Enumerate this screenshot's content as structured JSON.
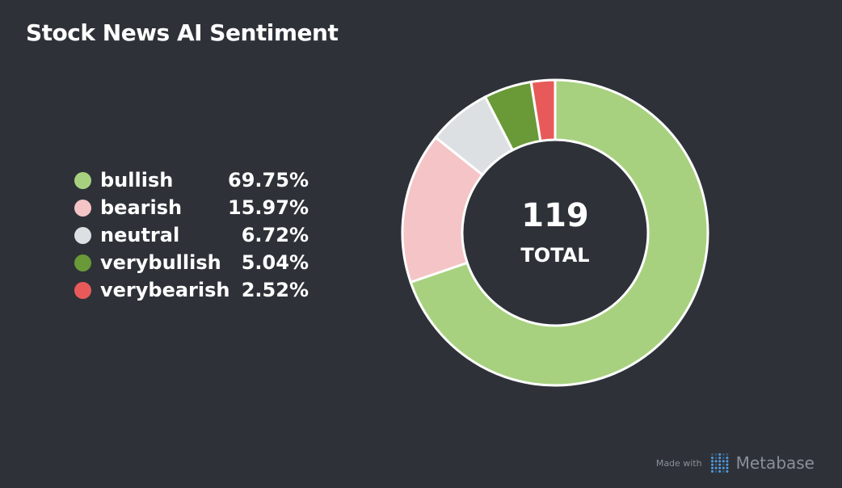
{
  "title": "Stock News AI Sentiment",
  "chart_data": {
    "type": "pie",
    "donut": true,
    "title": "Stock News AI Sentiment",
    "total": 119,
    "total_label": "TOTAL",
    "slices": [
      {
        "label": "bullish",
        "count": 83,
        "pct_label": "69.75%",
        "color": "#a8d17f"
      },
      {
        "label": "bearish",
        "count": 19,
        "pct_label": "15.97%",
        "color": "#f5c4c6"
      },
      {
        "label": "neutral",
        "count": 8,
        "pct_label": "6.72%",
        "color": "#dce0e3"
      },
      {
        "label": "verybullish",
        "count": 6,
        "pct_label": "5.04%",
        "color": "#6a9a38"
      },
      {
        "label": "verybearish",
        "count": 3,
        "pct_label": "2.52%",
        "color": "#e85a5a"
      }
    ],
    "legend_position": "left"
  },
  "footer": {
    "made_with": "Made with",
    "brand": "Metabase",
    "brand_color": "#509ee3"
  },
  "colors": {
    "background": "#2e3238",
    "text": "#ffffff",
    "slice_border": "#ffffff"
  }
}
